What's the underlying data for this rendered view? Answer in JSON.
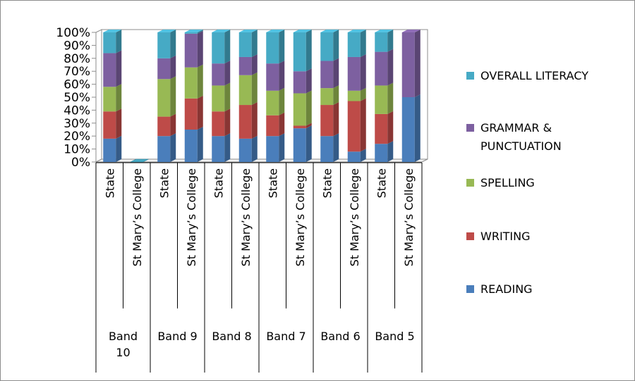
{
  "chart_data": {
    "type": "bar",
    "stacked": "percent",
    "y_ticks": [
      "0%",
      "10%",
      "20%",
      "30%",
      "40%",
      "50%",
      "60%",
      "70%",
      "80%",
      "90%",
      "100%"
    ],
    "ylim": [
      0,
      100
    ],
    "groups": [
      {
        "label": "Band 10",
        "label_lines": [
          "Band",
          "10"
        ],
        "categories": [
          "State",
          "St Mary’s College"
        ]
      },
      {
        "label": "Band 9",
        "label_lines": [
          "Band 9"
        ],
        "categories": [
          "State",
          "St Mary’s College"
        ]
      },
      {
        "label": "Band 8",
        "label_lines": [
          "Band 8"
        ],
        "categories": [
          "State",
          "St Mary’s College"
        ]
      },
      {
        "label": "Band 7",
        "label_lines": [
          "Band 7"
        ],
        "categories": [
          "State",
          "St Mary’s College"
        ]
      },
      {
        "label": "Band 6",
        "label_lines": [
          "Band 6"
        ],
        "categories": [
          "State",
          "St Mary’s College"
        ]
      },
      {
        "label": "Band 5",
        "label_lines": [
          "Band 5"
        ],
        "categories": [
          "State",
          "St Mary’s College"
        ]
      }
    ],
    "series": [
      {
        "name": "READING",
        "color": "#4a7ebb",
        "values": [
          18,
          0,
          20,
          25,
          20,
          18,
          20,
          26,
          20,
          8,
          14,
          50
        ]
      },
      {
        "name": "WRITING",
        "color": "#be4b48",
        "values": [
          21,
          0,
          15,
          24,
          19,
          26,
          16,
          2,
          24,
          39,
          23,
          0
        ]
      },
      {
        "name": "SPELLING",
        "color": "#98b954",
        "values": [
          19,
          0,
          29,
          24,
          20,
          23,
          19,
          25,
          13,
          8,
          22,
          0
        ]
      },
      {
        "name": "GRAMMAR & PUNCTUATION",
        "legend_lines": [
          "GRAMMAR &",
          "PUNCTUATION"
        ],
        "color": "#7d60a0",
        "values": [
          26,
          0,
          16,
          26,
          17,
          14,
          21,
          17,
          21,
          26,
          26,
          50
        ]
      },
      {
        "name": "OVERALL LITERACY",
        "color": "#46aac5",
        "values": [
          16,
          0,
          20,
          1,
          24,
          19,
          24,
          30,
          22,
          19,
          15,
          0
        ]
      }
    ],
    "legend_position": "right",
    "grid": false
  }
}
